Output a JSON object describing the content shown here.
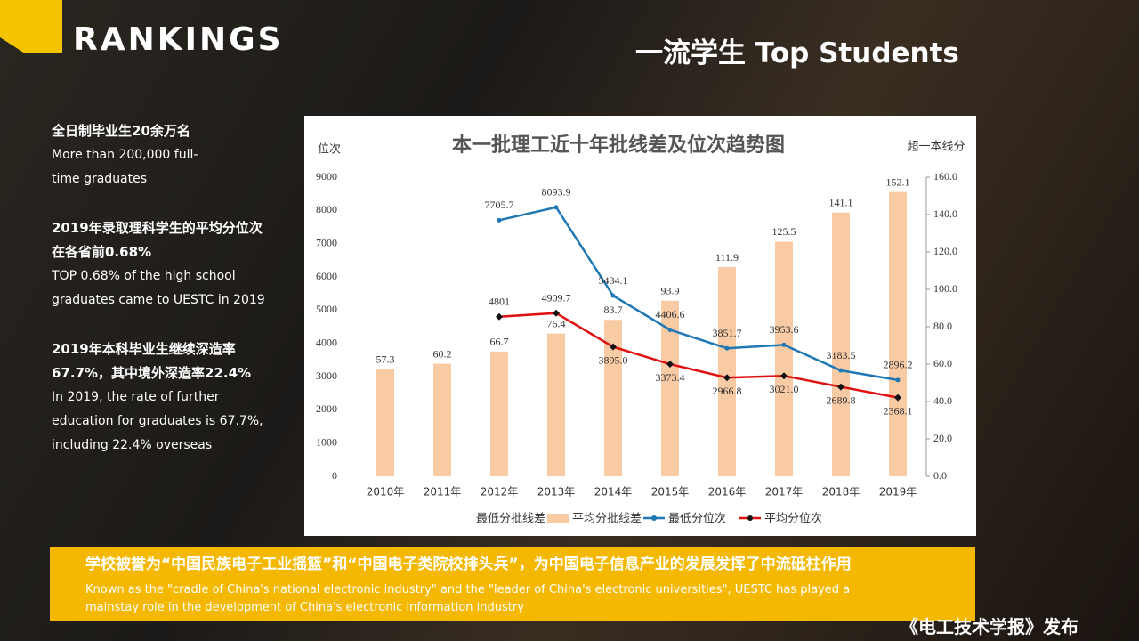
{
  "slide": {
    "brand": "RANKINGS",
    "heading": "一流学生 Top Students",
    "facts": [
      [
        "全日制毕业生20余万名",
        "More than 200,000 full-",
        "time graduates"
      ],
      [
        "2019年录取理科学生的平均分位次",
        "在各省前0.68%",
        "TOP 0.68% of the high school",
        "graduates came to UESTC in 2019"
      ],
      [
        "2019年本科毕业生继续深造率",
        "67.7%，其中境外深造率22.4%",
        "In 2019, the rate of further",
        "education for graduates is 67.7%,",
        "including 22.4% overseas"
      ]
    ],
    "banner": [
      "学校被誉为“中国民族电子工业摇篮”和“中国电子类院校排头兵”，为中国电子信息产业的发展发挥了中流砥柱作用",
      "Known as the \"cradle of China's national electronic industry\" and the \"leader of China's electronic universities\", UESTC has played a",
      "mainstay role in the development of China's electronic information industry"
    ],
    "source": "《电工技术学报》发布"
  },
  "chart_data": {
    "type": "bar-line",
    "title": "本一批理工近十年批线差及位次趋势图",
    "y_label": "位次",
    "y2_label": "超一本线分",
    "categories": [
      "2010年",
      "2011年",
      "2012年",
      "2013年",
      "2014年",
      "2015年",
      "2016年",
      "2017年",
      "2018年",
      "2019年"
    ],
    "ylim": [
      0,
      9000
    ],
    "yticks": [
      0,
      1000,
      2000,
      3000,
      4000,
      5000,
      6000,
      7000,
      8000,
      9000
    ],
    "y2lim": [
      0,
      160
    ],
    "y2ticks": [
      {
        "value": 0,
        "label": "0.0"
      },
      {
        "value": 20,
        "label": "20.0"
      },
      {
        "value": 40,
        "label": "40.0"
      },
      {
        "value": 60,
        "label": "60.0"
      },
      {
        "value": 80,
        "label": "80.0"
      },
      {
        "value": 100,
        "label": "100.0"
      },
      {
        "value": 120,
        "label": "120.0"
      },
      {
        "value": 140,
        "label": "140.0"
      },
      {
        "value": 160,
        "label": "160.0"
      }
    ],
    "series": [
      {
        "name": "最低分批线差",
        "kind": "bar",
        "color": "none",
        "axis": "y2",
        "values": [
          null,
          null,
          null,
          null,
          null,
          null,
          null,
          null,
          null,
          null
        ]
      },
      {
        "name": "平均分批线差",
        "kind": "bar",
        "color": "#f8cba5",
        "axis": "y2",
        "values": [
          57.3,
          60.2,
          66.7,
          76.4,
          83.7,
          93.9,
          111.9,
          125.5,
          141.1,
          152.1
        ]
      },
      {
        "name": "最低分位次",
        "kind": "line",
        "color": "#1f77b4",
        "values": [
          null,
          null,
          7705.7,
          8093.9,
          5434.1,
          4406.6,
          3851.7,
          3953.6,
          3183.5,
          2896.2
        ],
        "value_labels": [
          null,
          null,
          "7705.7",
          "8093.9",
          "5434.1",
          "4406.6",
          "3851.7",
          "3953.6",
          "3183.5",
          "2896.2"
        ]
      },
      {
        "name": "平均分位次",
        "kind": "line",
        "color": "#e01010",
        "values": [
          null,
          null,
          4801,
          4909.7,
          3895,
          3373.4,
          2966.8,
          3021,
          2689.8,
          2368.1
        ],
        "value_labels": [
          null,
          null,
          "4801",
          "4909.7",
          "3895.0",
          "3373.4",
          "2966.8",
          "3021.0",
          "2689.8",
          "2368.1"
        ]
      }
    ]
  }
}
